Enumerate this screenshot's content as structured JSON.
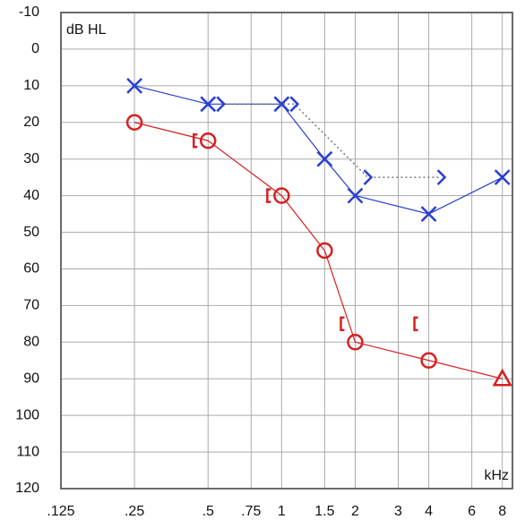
{
  "chart_data": {
    "type": "line",
    "y_label": "dB HL",
    "x_label": "kHz",
    "xscale": "log",
    "xlim": [
      0.125,
      8.8
    ],
    "ylim": [
      -10,
      120
    ],
    "y_inverted": true,
    "grid": true,
    "xticks": [
      {
        "value": 0.125,
        "label": ".125"
      },
      {
        "value": 0.25,
        "label": ".25"
      },
      {
        "value": 0.5,
        "label": ".5"
      },
      {
        "value": 0.75,
        "label": ".75"
      },
      1,
      1.5,
      2,
      3,
      4,
      6,
      8
    ],
    "yticks": [
      -10,
      0,
      10,
      20,
      30,
      40,
      50,
      60,
      70,
      80,
      90,
      100,
      110,
      120
    ],
    "series": [
      {
        "color": "#d62020",
        "line": "solid",
        "markers": [
          "o",
          "o",
          "o",
          "o",
          "o",
          "o",
          "triangle"
        ],
        "x": [
          0.25,
          0.5,
          1,
          1.5,
          2,
          4,
          8
        ],
        "values": [
          20,
          25,
          40,
          55,
          80,
          85,
          90
        ]
      },
      {
        "color": "#2a3fd0",
        "line": "solid",
        "markers": [
          "x",
          "x",
          "x",
          "x",
          "x",
          "x",
          "x"
        ],
        "x": [
          0.25,
          0.5,
          1,
          1.5,
          2,
          4,
          8
        ],
        "values": [
          10,
          15,
          15,
          30,
          40,
          45,
          35
        ]
      },
      {
        "color": "#d62020",
        "line": "none",
        "markers": [
          "[",
          "[",
          "[",
          "["
        ],
        "x": [
          0.5,
          1,
          2,
          4
        ],
        "values": [
          25,
          40,
          75,
          75
        ]
      },
      {
        "color": "#2a3fd0",
        "line": "dotted",
        "markers": [
          ">",
          ">",
          ">",
          ">"
        ],
        "x": [
          0.5,
          1,
          2,
          4
        ],
        "values": [
          15,
          15,
          35,
          35
        ]
      }
    ]
  }
}
